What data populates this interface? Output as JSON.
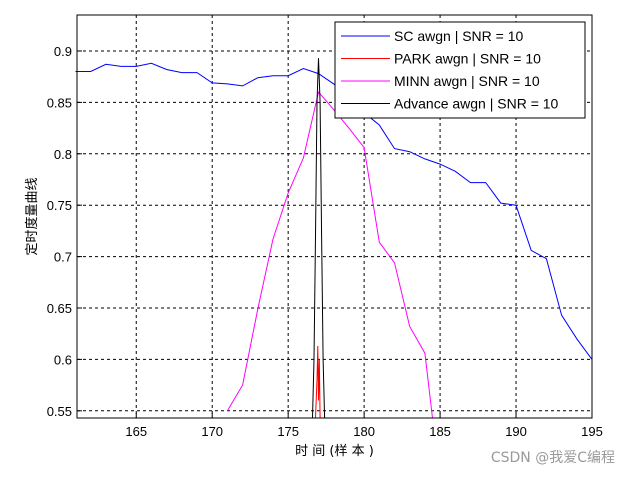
{
  "chart_data": {
    "type": "line",
    "title": "",
    "xlabel": "时 间 (样 本 )",
    "ylabel": "定时度量曲线",
    "xlim": [
      161.1,
      195
    ],
    "ylim": [
      0.543,
      0.935
    ],
    "xticks": [
      165,
      170,
      175,
      180,
      185,
      190,
      195
    ],
    "yticks": [
      0.55,
      0.6,
      0.65,
      0.7,
      0.75,
      0.8,
      0.85,
      0.9
    ],
    "grid": true,
    "legend_placement": "top-right",
    "series": [
      {
        "name": "SC      awgn | SNR = 10",
        "color": "#0000ff",
        "x": [
          161,
          162,
          163,
          164,
          165,
          166,
          167,
          168,
          169,
          170,
          171,
          172,
          173,
          174,
          175,
          176,
          177,
          178,
          179,
          180,
          181,
          182,
          183,
          184,
          185,
          186,
          187,
          188,
          189,
          190,
          191,
          192,
          193,
          194,
          195
        ],
        "y": [
          0.88,
          0.88,
          0.887,
          0.885,
          0.885,
          0.888,
          0.882,
          0.879,
          0.879,
          0.869,
          0.868,
          0.866,
          0.874,
          0.876,
          0.876,
          0.883,
          0.878,
          0.868,
          0.855,
          0.84,
          0.828,
          0.805,
          0.802,
          0.795,
          0.79,
          0.783,
          0.772,
          0.772,
          0.752,
          0.75,
          0.706,
          0.698,
          0.643,
          0.62,
          0.6
        ]
      },
      {
        "name": "PARK  awgn | SNR = 10",
        "color": "#ff0000",
        "x": [
          176.8,
          176.9,
          176.95,
          177.0,
          177.05,
          177.1
        ],
        "y": [
          0.543,
          0.58,
          0.613,
          0.56,
          0.6,
          0.543
        ]
      },
      {
        "name": "MINN  awgn | SNR = 10",
        "color": "#ff00ff",
        "x": [
          171,
          172,
          173,
          174,
          175,
          176,
          177,
          178,
          179,
          180,
          181,
          182,
          183,
          184,
          184.5
        ],
        "y": [
          0.55,
          0.575,
          0.649,
          0.717,
          0.762,
          0.796,
          0.86,
          0.843,
          0.825,
          0.806,
          0.714,
          0.694,
          0.632,
          0.606,
          0.543
        ]
      },
      {
        "name": "Advance  awgn | SNR = 10",
        "color": "#000000",
        "x": [
          176.6,
          176.7,
          176.8,
          176.9,
          177.0,
          177.1,
          177.2,
          177.3,
          177.4
        ],
        "y": [
          0.543,
          0.6,
          0.72,
          0.85,
          0.893,
          0.85,
          0.72,
          0.6,
          0.543
        ]
      }
    ]
  },
  "watermark": "CSDN @我爱C编程"
}
